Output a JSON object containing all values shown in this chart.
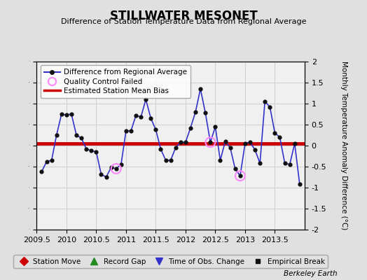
{
  "title": "STILLWATER MESONET",
  "subtitle": "Difference of Station Temperature Data from Regional Average",
  "ylabel_right": "Monthly Temperature Anomaly Difference (°C)",
  "credit": "Berkeley Earth",
  "xlim": [
    2009.5,
    2014.0
  ],
  "ylim": [
    -2,
    2
  ],
  "xticks": [
    2009.5,
    2010,
    2010.5,
    2011,
    2011.5,
    2012,
    2012.5,
    2013,
    2013.5
  ],
  "xtick_labels": [
    "2009.5",
    "2010",
    "2010.5",
    "2011",
    "2011.5",
    "2012",
    "2012.5",
    "2013",
    "2013.5"
  ],
  "yticks": [
    -2,
    -1.5,
    -1,
    -0.5,
    0,
    0.5,
    1,
    1.5,
    2
  ],
  "bias_line_y": 0.05,
  "bias_line_color": "#cc0000",
  "line_color": "#3333cc",
  "marker_color": "#111111",
  "qc_fail_color": "#ff88ff",
  "plot_bg_color": "#f0f0f0",
  "fig_bg_color": "#e0e0e0",
  "grid_color": "#d0d0d0",
  "time_values": [
    2009.583,
    2009.667,
    2009.75,
    2009.833,
    2009.917,
    2010.0,
    2010.083,
    2010.167,
    2010.25,
    2010.333,
    2010.417,
    2010.5,
    2010.583,
    2010.667,
    2010.75,
    2010.833,
    2010.917,
    2011.0,
    2011.083,
    2011.167,
    2011.25,
    2011.333,
    2011.417,
    2011.5,
    2011.583,
    2011.667,
    2011.75,
    2011.833,
    2011.917,
    2012.0,
    2012.083,
    2012.167,
    2012.25,
    2012.333,
    2012.417,
    2012.5,
    2012.583,
    2012.667,
    2012.75,
    2012.833,
    2012.917,
    2013.0,
    2013.083,
    2013.167,
    2013.25,
    2013.333,
    2013.417,
    2013.5,
    2013.583,
    2013.667,
    2013.75,
    2013.833,
    2013.917
  ],
  "diff_values": [
    -0.62,
    -0.38,
    -0.35,
    0.25,
    0.75,
    0.73,
    0.75,
    0.25,
    0.18,
    -0.08,
    -0.12,
    -0.15,
    -0.68,
    -0.75,
    -0.52,
    -0.55,
    -0.45,
    0.35,
    0.35,
    0.72,
    0.68,
    1.1,
    0.65,
    0.38,
    -0.08,
    -0.35,
    -0.35,
    -0.05,
    0.08,
    0.08,
    0.42,
    0.8,
    1.35,
    0.78,
    0.08,
    0.45,
    -0.35,
    0.1,
    -0.05,
    -0.55,
    -0.72,
    0.05,
    0.08,
    -0.1,
    -0.42,
    1.05,
    0.92,
    0.3,
    0.2,
    -0.42,
    -0.45,
    0.05,
    -0.92
  ],
  "qc_fail_indices": [
    15,
    34,
    40
  ],
  "legend1": [
    {
      "label": "Difference from Regional Average",
      "color": "#3333cc",
      "lw": 1.5,
      "marker": "o",
      "mfc": "#111111",
      "mec": "#111111",
      "ms": 4
    },
    {
      "label": "Quality Control Failed",
      "color": "#ff88ff",
      "marker": "o",
      "ms": 8
    },
    {
      "label": "Estimated Station Mean Bias",
      "color": "#cc0000",
      "lw": 2.5
    }
  ],
  "legend2": [
    {
      "label": "Station Move",
      "color": "#cc0000",
      "marker": "D",
      "ms": 6
    },
    {
      "label": "Record Gap",
      "color": "#228B22",
      "marker": "^",
      "ms": 7
    },
    {
      "label": "Time of Obs. Change",
      "color": "#3333cc",
      "marker": "v",
      "ms": 7
    },
    {
      "label": "Empirical Break",
      "color": "#111111",
      "marker": "s",
      "ms": 5
    }
  ]
}
